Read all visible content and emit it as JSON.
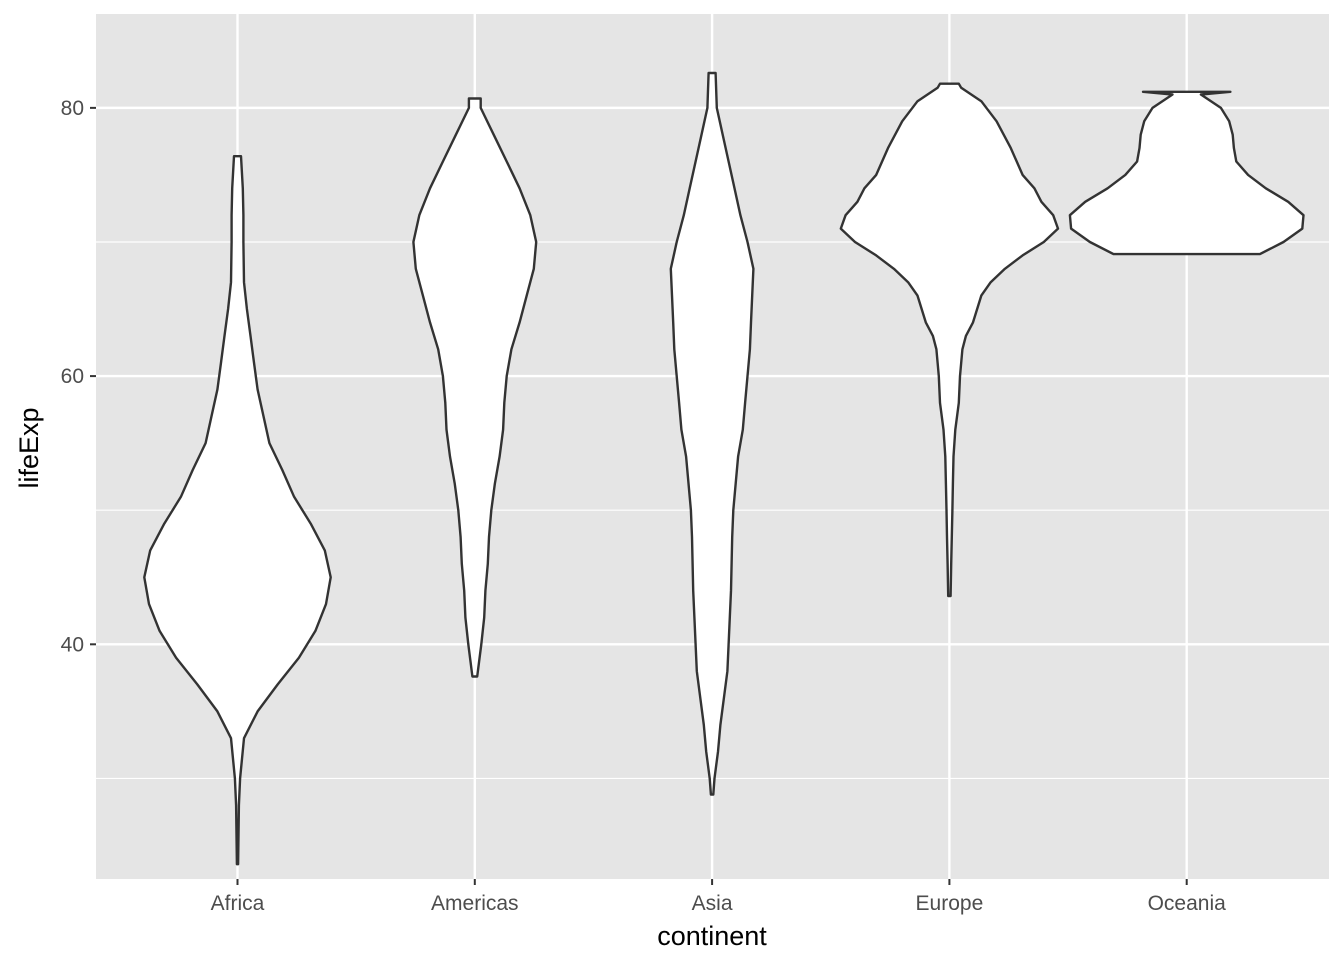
{
  "chart_data": {
    "type": "violin",
    "xlabel": "continent",
    "ylabel": "lifeExp",
    "categories": [
      "Africa",
      "Americas",
      "Asia",
      "Europe",
      "Oceania"
    ],
    "ylim": [
      22.5,
      87
    ],
    "y_ticks": [
      40,
      60,
      80
    ],
    "y_minor_ticks": [
      30,
      50,
      70
    ],
    "grid": true,
    "colors": {
      "panel": "#e5e5e5",
      "grid": "#ffffff",
      "violin_fill": "#ffffff",
      "violin_outline": "#333333",
      "text": "#4d4d4d"
    },
    "violins": [
      {
        "category": "Africa",
        "min": 23.6,
        "max": 76.4,
        "profile": [
          [
            23.6,
            0.005
          ],
          [
            28,
            0.012
          ],
          [
            30,
            0.022
          ],
          [
            33,
            0.055
          ],
          [
            35,
            0.17
          ],
          [
            37,
            0.34
          ],
          [
            39,
            0.52
          ],
          [
            41,
            0.66
          ],
          [
            43,
            0.75
          ],
          [
            45,
            0.79
          ],
          [
            47,
            0.74
          ],
          [
            49,
            0.62
          ],
          [
            51,
            0.48
          ],
          [
            53,
            0.38
          ],
          [
            55,
            0.27
          ],
          [
            57,
            0.22
          ],
          [
            59,
            0.17
          ],
          [
            61,
            0.14
          ],
          [
            63,
            0.11
          ],
          [
            65,
            0.08
          ],
          [
            67,
            0.055
          ],
          [
            70,
            0.05
          ],
          [
            72,
            0.05
          ],
          [
            74,
            0.045
          ],
          [
            76.4,
            0.03
          ]
        ]
      },
      {
        "category": "Americas",
        "min": 37.6,
        "max": 80.7,
        "profile": [
          [
            37.6,
            0.02
          ],
          [
            40,
            0.055
          ],
          [
            42,
            0.08
          ],
          [
            44,
            0.09
          ],
          [
            46,
            0.11
          ],
          [
            48,
            0.12
          ],
          [
            50,
            0.14
          ],
          [
            52,
            0.17
          ],
          [
            54,
            0.21
          ],
          [
            56,
            0.24
          ],
          [
            58,
            0.25
          ],
          [
            60,
            0.27
          ],
          [
            62,
            0.31
          ],
          [
            64,
            0.38
          ],
          [
            66,
            0.44
          ],
          [
            68,
            0.5
          ],
          [
            70,
            0.52
          ],
          [
            72,
            0.47
          ],
          [
            74,
            0.38
          ],
          [
            76,
            0.27
          ],
          [
            78,
            0.16
          ],
          [
            80,
            0.05
          ],
          [
            80.7,
            0.05
          ]
        ]
      },
      {
        "category": "Asia",
        "min": 28.8,
        "max": 82.6,
        "profile": [
          [
            28.8,
            0.01
          ],
          [
            30,
            0.02
          ],
          [
            32,
            0.05
          ],
          [
            34,
            0.07
          ],
          [
            36,
            0.1
          ],
          [
            38,
            0.13
          ],
          [
            40,
            0.14
          ],
          [
            42,
            0.15
          ],
          [
            44,
            0.16
          ],
          [
            46,
            0.165
          ],
          [
            48,
            0.17
          ],
          [
            50,
            0.18
          ],
          [
            52,
            0.2
          ],
          [
            54,
            0.22
          ],
          [
            56,
            0.26
          ],
          [
            58,
            0.28
          ],
          [
            60,
            0.3
          ],
          [
            62,
            0.32
          ],
          [
            64,
            0.33
          ],
          [
            66,
            0.34
          ],
          [
            68,
            0.35
          ],
          [
            70,
            0.3
          ],
          [
            72,
            0.24
          ],
          [
            74,
            0.19
          ],
          [
            76,
            0.14
          ],
          [
            78,
            0.09
          ],
          [
            80,
            0.04
          ],
          [
            82.6,
            0.03
          ]
        ]
      },
      {
        "category": "Europe",
        "min": 43.6,
        "max": 81.8,
        "profile": [
          [
            43.6,
            0.01
          ],
          [
            46,
            0.015
          ],
          [
            48,
            0.02
          ],
          [
            50,
            0.025
          ],
          [
            52,
            0.03
          ],
          [
            54,
            0.035
          ],
          [
            56,
            0.05
          ],
          [
            58,
            0.08
          ],
          [
            60,
            0.09
          ],
          [
            61,
            0.1
          ],
          [
            62,
            0.11
          ],
          [
            63,
            0.14
          ],
          [
            64,
            0.2
          ],
          [
            66,
            0.27
          ],
          [
            67,
            0.35
          ],
          [
            68,
            0.47
          ],
          [
            69,
            0.62
          ],
          [
            70,
            0.8
          ],
          [
            71,
            0.92
          ],
          [
            72,
            0.88
          ],
          [
            73,
            0.78
          ],
          [
            74,
            0.72
          ],
          [
            75,
            0.62
          ],
          [
            77,
            0.52
          ],
          [
            79,
            0.4
          ],
          [
            80.5,
            0.27
          ],
          [
            81.5,
            0.1
          ],
          [
            81.8,
            0.08
          ]
        ]
      },
      {
        "category": "Oceania",
        "min": 69.1,
        "max": 81.2,
        "profile": [
          [
            69.1,
            0.62
          ],
          [
            70,
            0.82
          ],
          [
            71,
            0.98
          ],
          [
            72,
            0.99
          ],
          [
            73,
            0.86
          ],
          [
            74,
            0.67
          ],
          [
            75,
            0.52
          ],
          [
            76,
            0.42
          ],
          [
            77,
            0.4
          ],
          [
            78,
            0.39
          ],
          [
            79,
            0.36
          ],
          [
            80,
            0.29
          ],
          [
            81,
            0.12
          ],
          [
            81.2,
            0.37
          ]
        ]
      }
    ]
  }
}
